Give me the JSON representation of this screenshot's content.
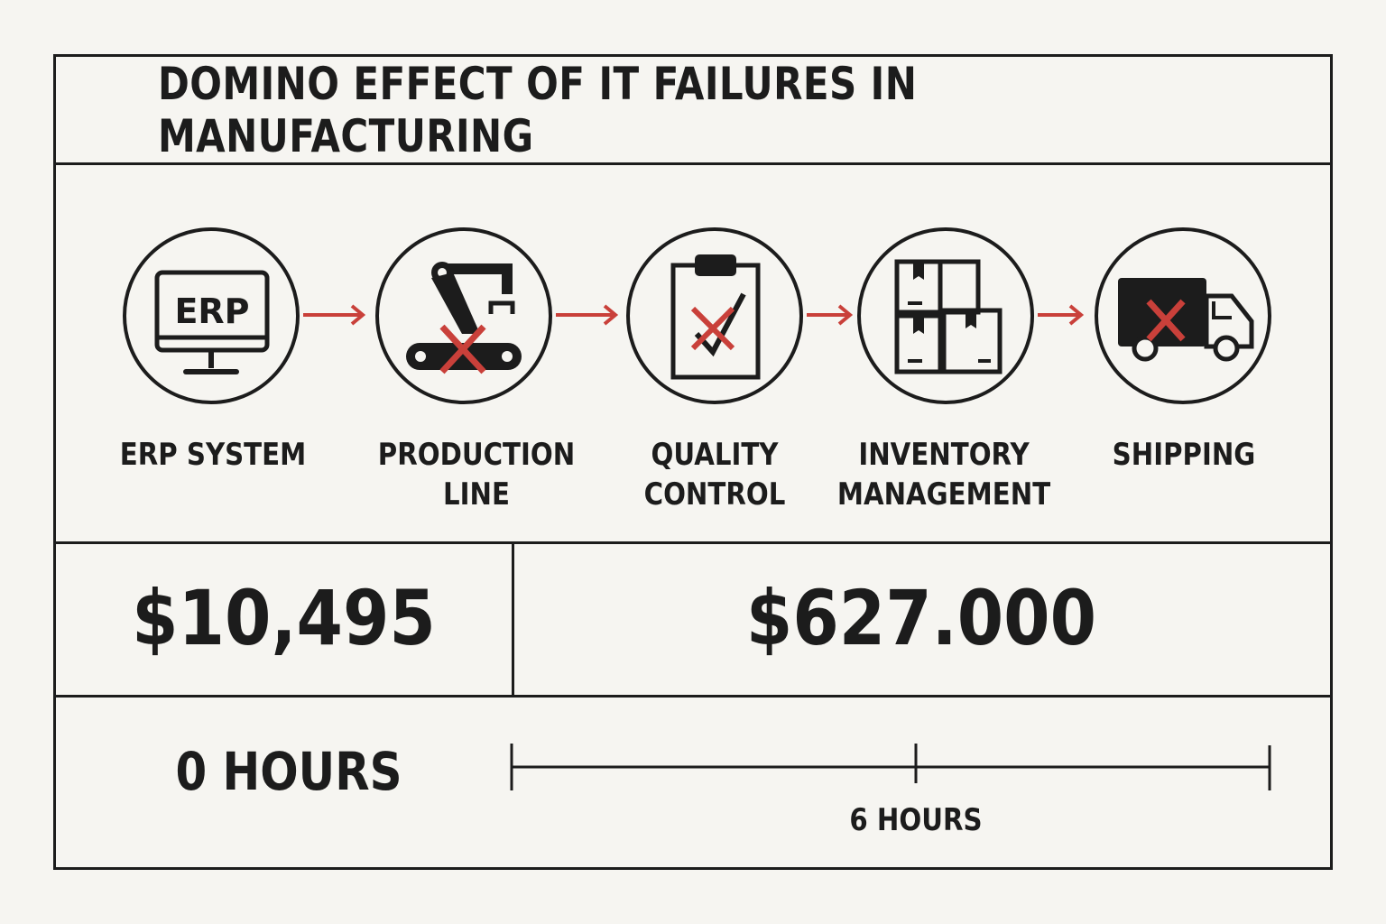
{
  "title": "DOMINO EFFECT OF IT FAILURES IN MANUFACTURING",
  "colors": {
    "ink": "#1c1c1c",
    "failure": "#c9403a",
    "background": "#f6f5f1"
  },
  "steps": [
    {
      "label": "ERP SYSTEM",
      "icon": "erp-monitor-icon",
      "icon_text": "ERP"
    },
    {
      "label": "PRODUCTION LINE",
      "icon": "robotic-arm-icon"
    },
    {
      "label": "QUALITY CONTROL",
      "icon": "clipboard-icon"
    },
    {
      "label": "INVENTORY MANAGEMENT",
      "icon": "boxes-icon"
    },
    {
      "label": "SHIPPING",
      "icon": "truck-icon"
    }
  ],
  "costs": {
    "left": "$10,495",
    "right": "$627.000"
  },
  "timeline": {
    "start_label": "0 HOURS",
    "mid_label": "6 HOURS"
  }
}
